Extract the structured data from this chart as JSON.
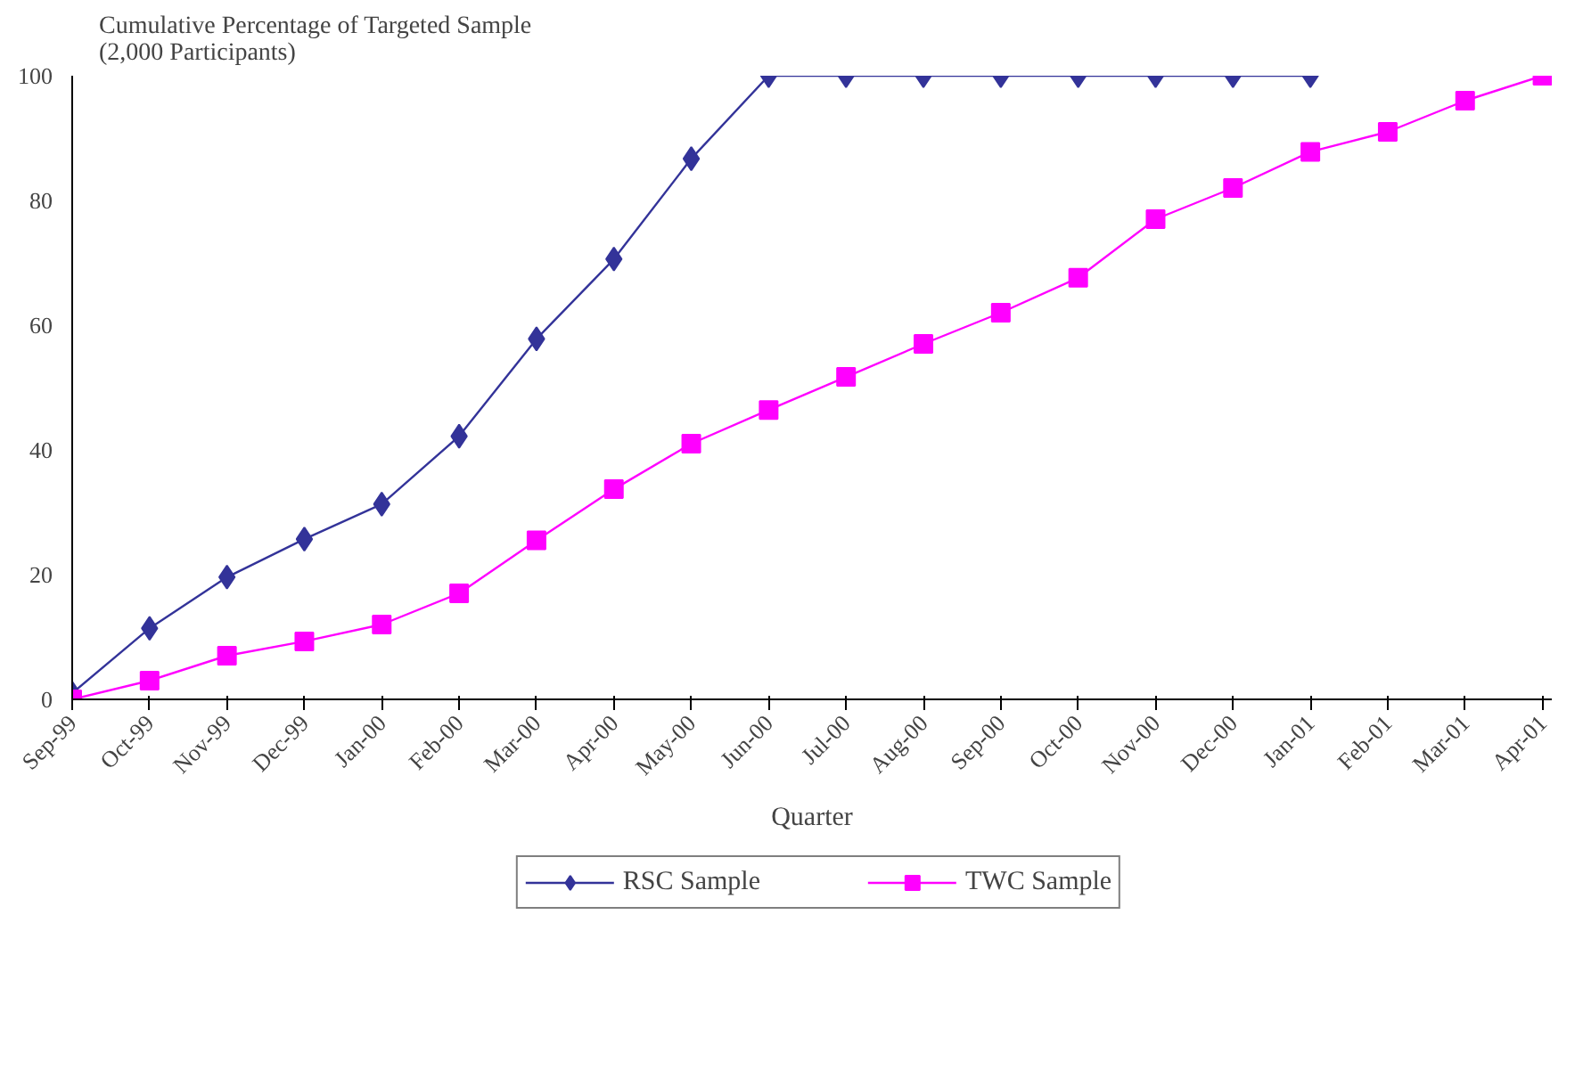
{
  "chart_data": {
    "type": "line",
    "ylabel": "Cumulative Percentage of Targeted Sample\n(2,000 Participants)",
    "xlabel": "Quarter",
    "categories": [
      "Sep-99",
      "Oct-99",
      "Nov-99",
      "Dec-99",
      "Jan-00",
      "Feb-00",
      "Mar-00",
      "Apr-00",
      "May-00",
      "Jun-00",
      "Jul-00",
      "Aug-00",
      "Sep-00",
      "Oct-00",
      "Nov-00",
      "Dec-00",
      "Jan-01",
      "Feb-01",
      "Mar-01",
      "Apr-01"
    ],
    "series": [
      {
        "name": "RSC Sample",
        "color": "#333399",
        "marker": "diamond",
        "values": [
          1,
          11.4,
          19.6,
          25.7,
          31.3,
          42.2,
          57.8,
          70.6,
          86.7,
          100,
          100,
          100,
          100,
          100,
          100,
          100,
          100,
          null,
          null,
          null
        ]
      },
      {
        "name": "TWC Sample",
        "color": "#ff00ff",
        "marker": "square",
        "values": [
          0,
          3,
          7,
          9.3,
          12,
          17,
          25.5,
          33.7,
          41,
          46.4,
          51.7,
          57,
          62,
          67.6,
          77,
          82,
          87.8,
          91,
          96,
          100
        ]
      }
    ],
    "ylim": [
      0,
      100
    ],
    "yticks": [
      0,
      20,
      40,
      60,
      80,
      100
    ],
    "grid": false,
    "legend": "bottom",
    "line_style": "solid"
  }
}
